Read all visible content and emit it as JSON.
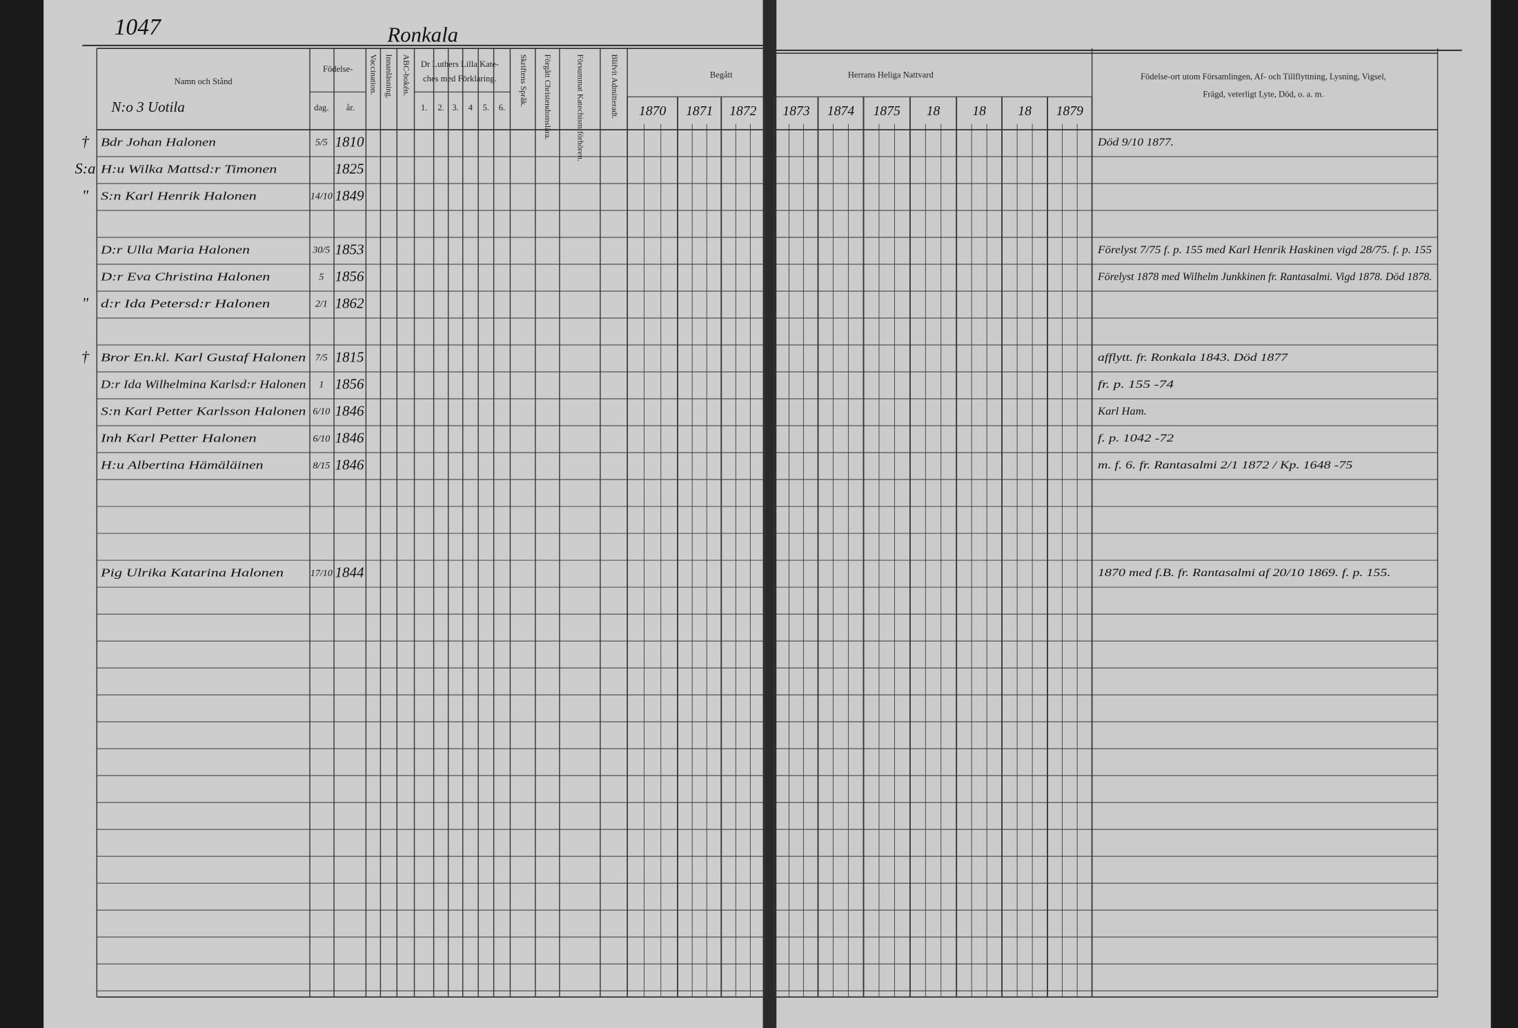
{
  "page_number": "1047",
  "village": "Ronkala",
  "household": "N:o 3 Uotila",
  "header": {
    "name": "Namn och Stånd",
    "birth": "Födelse-",
    "day": "dag.",
    "year": "år.",
    "vaccination": "Vaccination.",
    "reading": "Innanläsning.",
    "abc": "ABC-bokén.",
    "catechism": [
      "Dr Luthers Lilla Kate-",
      "ches med Förklaring."
    ],
    "catechism_parts": [
      "1.",
      "2.",
      "3.",
      "4",
      "5.",
      "6."
    ],
    "scripture": "Skriftens Språk.",
    "christianity": "Förgått Christendomslära.",
    "missed": "Försummat Katechismiförhören.",
    "admitted": "Blifvit Admitteradt.",
    "communion_left": "Begått",
    "communion_right": "Herrans Heliga Nattvard",
    "remarks": [
      "Födelse-ort utom Församlingen, Af- och Tillflyttning, Lysning, Vigsel,",
      "Frägd, veterligt Lyte, Död, o. a. m."
    ]
  },
  "years": [
    "1870",
    "1871",
    "1872",
    "1873",
    "1874",
    "1875",
    "18",
    "18",
    "18",
    "1879"
  ],
  "persons": [
    {
      "mark": "†",
      "name": "Bdr Johan Halonen",
      "birth_day": "5/5",
      "birth_year": "1810",
      "remarks": "Död 9/10 1877."
    },
    {
      "mark": "S:a",
      "name": "H:u Wilka Mattsd:r Timonen",
      "birth_year": "1825"
    },
    {
      "mark": "\"",
      "name": "S:n Karl Henrik Halonen",
      "birth_day": "14/10",
      "birth_year": "1849"
    },
    {
      "name": "D:r Ulla Maria Halonen",
      "birth_day": "30/5",
      "birth_year": "1853",
      "remarks": "Förelyst 7/75 f. p. 155 med Karl Henrik Haskinen vigd 28/75. f. p. 155"
    },
    {
      "name": "D:r Eva Christina Halonen",
      "birth_day": "5",
      "birth_year": "1856",
      "remarks": "Förelyst 1878 med Wilhelm Junkkinen fr. Rantasalmi. Vigd 1878. Död 1878."
    },
    {
      "mark": "\"",
      "name": "d:r Ida Petersd:r Halonen",
      "birth_day": "2/1",
      "birth_year": "1862"
    },
    {
      "mark": "†",
      "name": "Bror En.kl. Karl Gustaf Halonen",
      "birth_day": "7/5",
      "birth_year": "1815",
      "remarks": "afflytt. fr. Ronkala 1843. Död 1877"
    },
    {
      "name": "D:r Ida Wilhelmina Karlsd:r Halonen",
      "birth_day": "1",
      "birth_year": "1856",
      "remarks": "fr. p. 155 -74"
    },
    {
      "name": "S:n Karl Petter Karlsson Halonen",
      "birth_day": "6/10",
      "birth_year": "1846",
      "remarks": "Karl Ham."
    },
    {
      "name": "Inh Karl Petter Halonen",
      "birth_day": "6/10",
      "birth_year": "1846",
      "remarks": "f. p. 1042 -72"
    },
    {
      "name": "H:u Albertina Hämäläinen",
      "birth_day": "8/15",
      "birth_year": "1846",
      "remarks": "m. f. 6. fr. Rantasalmi 2/1 1872 / Kp. 1648 -75"
    },
    {
      "name": "Pig Ulrika Katarina Halonen",
      "birth_day": "17/10",
      "birth_year": "1844",
      "remarks": "1870 med f.B. fr. Rantasalmi af 20/10 1869. f. p. 155."
    }
  ]
}
